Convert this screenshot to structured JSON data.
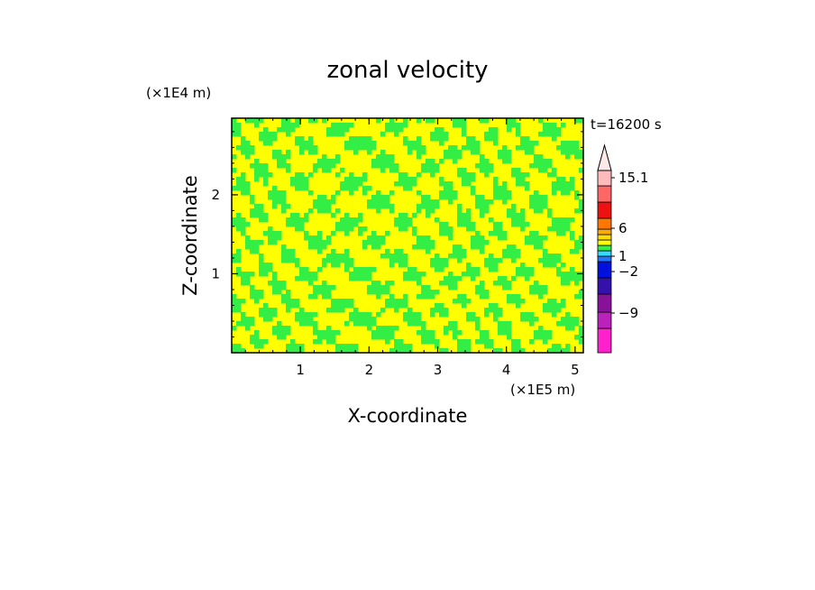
{
  "chart_data": {
    "type": "heatmap",
    "title": "zonal velocity",
    "xlabel": "X-coordinate",
    "ylabel": "Z-coordinate",
    "x_scale_label": "(×1E5 m)",
    "y_scale_label": "(×1E4 m)",
    "time_label": "t=16200 s",
    "xlim": [
      0,
      5.12
    ],
    "ylim": [
      0,
      2.97
    ],
    "x_ticks": [
      "1",
      "2",
      "3",
      "4",
      "5"
    ],
    "x_tick_values": [
      1,
      2,
      3,
      4,
      5
    ],
    "y_ticks": [
      "1",
      "2"
    ],
    "y_tick_values": [
      1,
      2
    ],
    "field_colors": {
      "positive": "#ffff00",
      "negative": "#33ee44"
    },
    "field_description_values": {
      "dominant_positive_level": 1,
      "dominant_negative_level": -2
    },
    "colorbar": {
      "tick_labels": [
        "15.1",
        "6",
        "1",
        "−2",
        "−9"
      ],
      "tick_values": [
        15.1,
        6,
        1,
        -2,
        -9
      ],
      "extend": "max",
      "extend_color": "#ffe8e8",
      "segments": [
        {
          "color": "#ff22cc"
        },
        {
          "color": "#bb22bb"
        },
        {
          "color": "#881199"
        },
        {
          "color": "#3311aa"
        },
        {
          "color": "#0011dd"
        },
        {
          "color": "#2277ff"
        },
        {
          "color": "#33ddff"
        },
        {
          "color": "#33ee44"
        },
        {
          "color": "#ffff00"
        },
        {
          "color": "#ffdd00"
        },
        {
          "color": "#ffaa00"
        },
        {
          "color": "#ff7700"
        },
        {
          "color": "#ee1111"
        },
        {
          "color": "#ff6666"
        },
        {
          "color": "#ffbbbb"
        }
      ]
    }
  }
}
